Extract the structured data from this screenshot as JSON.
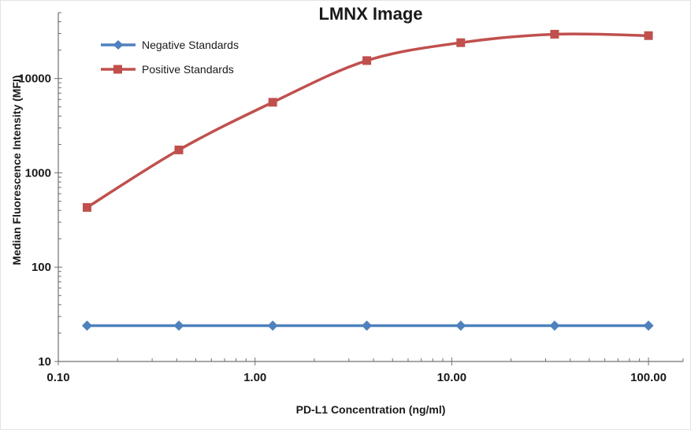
{
  "chart_data": {
    "type": "line",
    "title": "LMNX Image",
    "xlabel": "PD-L1 Concentration (ng/ml)",
    "ylabel": "Median Fluorescence Intensity (MFI)",
    "x_scale": "log",
    "y_scale": "log",
    "xlim": [
      0.1,
      150
    ],
    "ylim": [
      10,
      50000
    ],
    "grid": false,
    "legend_position": "top-left-inside",
    "x": [
      0.14,
      0.41,
      1.23,
      3.7,
      11.11,
      33.33,
      100
    ],
    "x_ticks": [
      {
        "v": 0.1,
        "label": "0.10"
      },
      {
        "v": 1,
        "label": "1.00"
      },
      {
        "v": 10,
        "label": "10.00"
      },
      {
        "v": 100,
        "label": "100.00"
      }
    ],
    "y_ticks": [
      {
        "v": 10,
        "label": "10"
      },
      {
        "v": 100,
        "label": "100"
      },
      {
        "v": 1000,
        "label": "1000"
      },
      {
        "v": 10000,
        "label": "10000"
      }
    ],
    "series": [
      {
        "name": "Negative Standards",
        "color": "#4f81bd",
        "marker": "diamond",
        "smooth": false,
        "values": [
          24,
          24,
          24,
          24,
          24,
          24,
          24
        ]
      },
      {
        "name": "Positive Standards",
        "color": "#c0504d",
        "marker": "square",
        "smooth": true,
        "values": [
          430,
          1750,
          5600,
          15500,
          24000,
          29500,
          28500
        ]
      }
    ],
    "axis_color": "#707070",
    "text_color": "#1a1a1a"
  }
}
